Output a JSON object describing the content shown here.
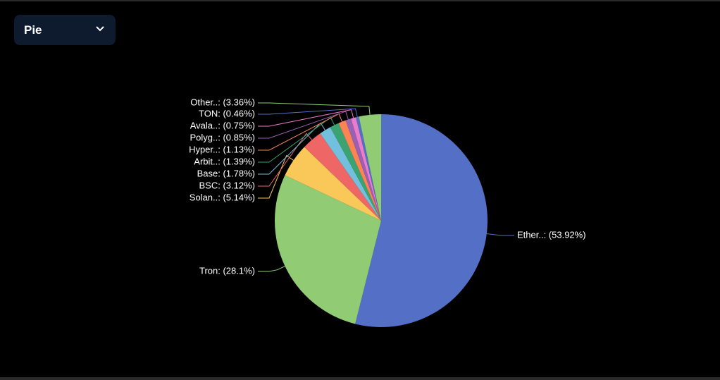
{
  "controls": {
    "chart_selector": "Pie"
  },
  "chart_data": {
    "type": "pie",
    "values": [
      53.92,
      28.1,
      5.14,
      3.12,
      1.78,
      1.39,
      1.13,
      0.85,
      0.75,
      0.46,
      3.36
    ],
    "value_labels": [
      "Ether..: (53.92%)",
      "Tron: (28.1%)",
      "Solan..: (5.14%)",
      "BSC: (3.12%)",
      "Base: (1.78%)",
      "Arbit..: (1.39%)",
      "Hyper..: (1.13%)",
      "Polyg..: (0.85%)",
      "Avala..: (0.75%)",
      "TON: (0.46%)",
      "Other..: (3.36%)"
    ],
    "colors": [
      "#5470c6",
      "#91cc75",
      "#fac858",
      "#ee6666",
      "#73c0de",
      "#3ba272",
      "#fc8452",
      "#9a60b4",
      "#ea7ccc",
      "#5470c6",
      "#91cc75"
    ]
  }
}
